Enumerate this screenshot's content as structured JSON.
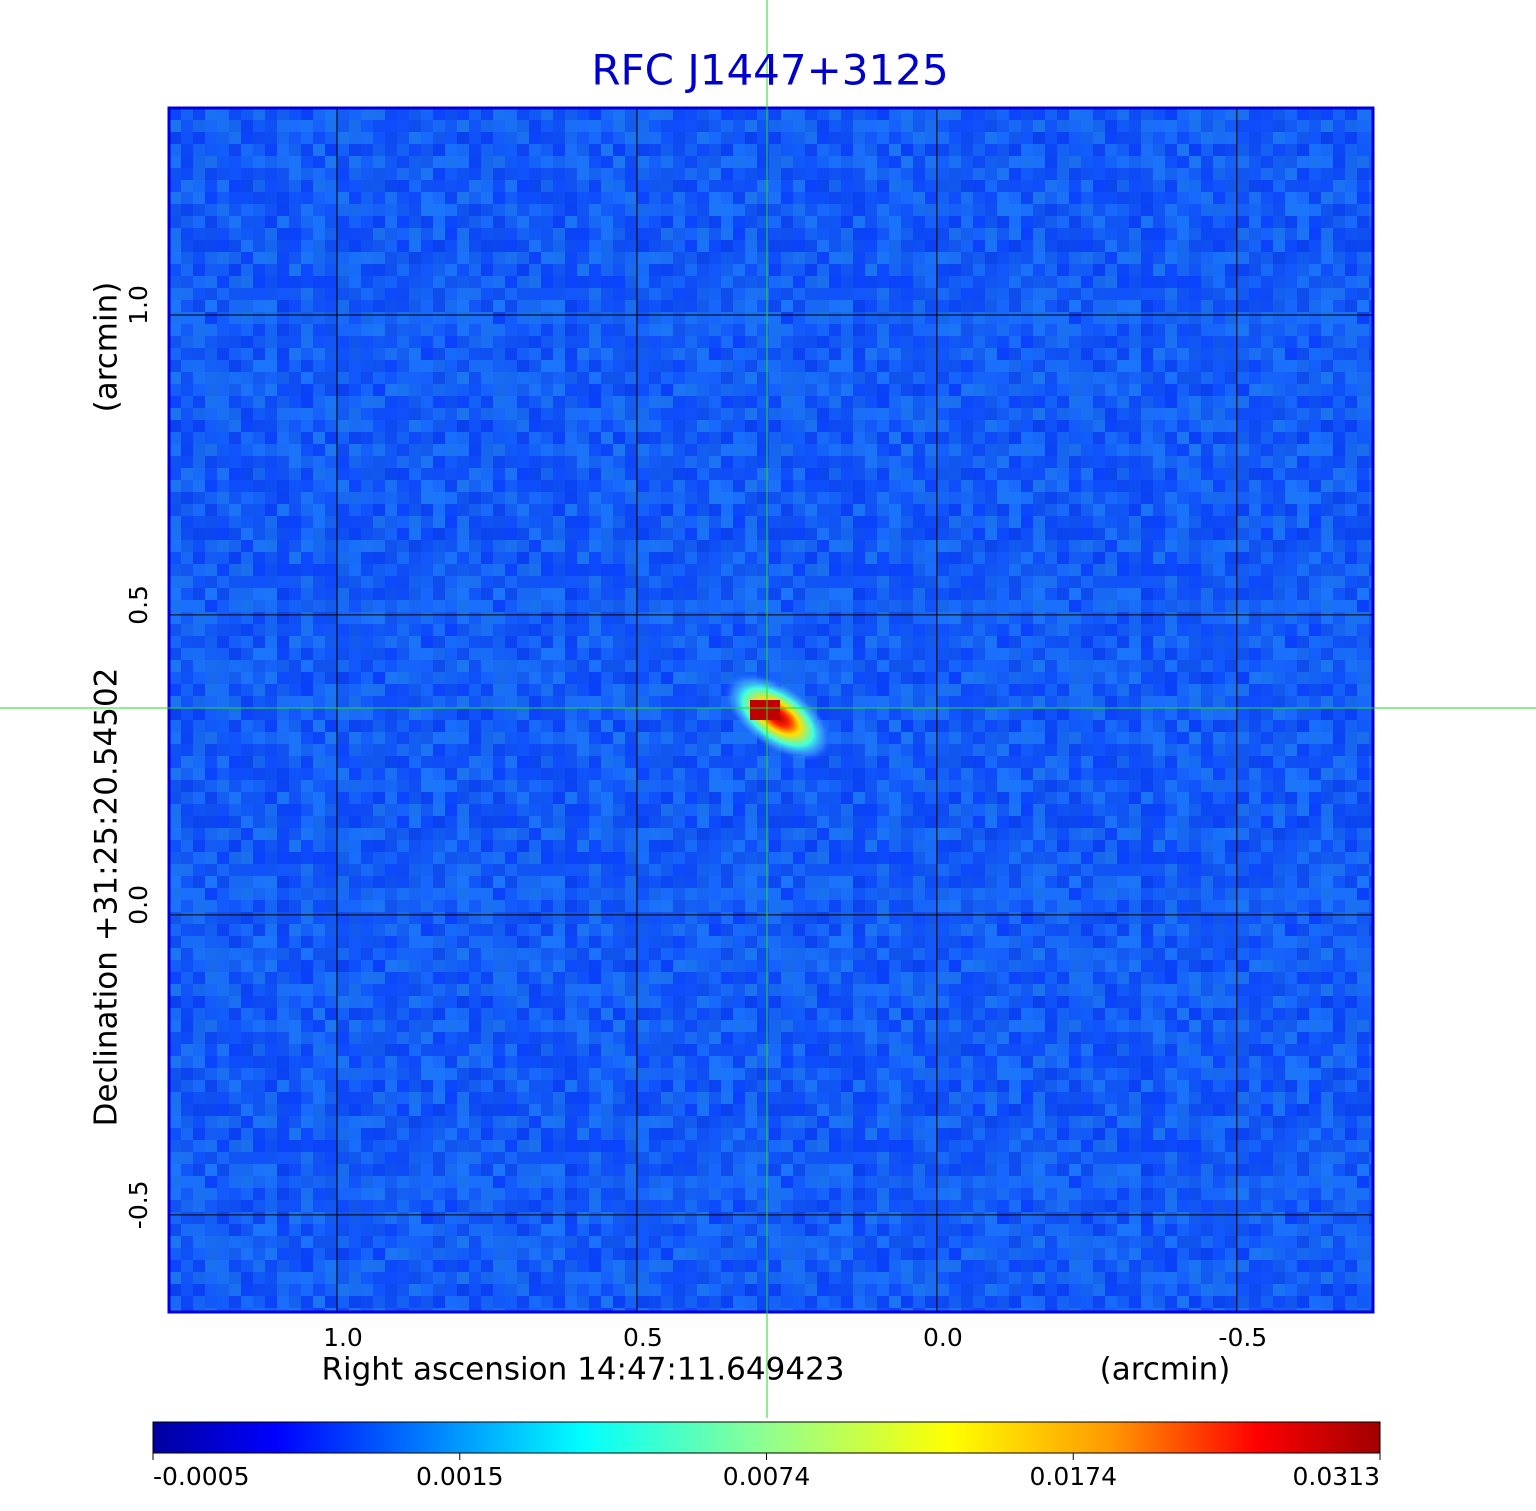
{
  "chart_data": {
    "type": "image",
    "title": "RFC J1447+3125",
    "xlabel": "Right ascension  14:47:11.649423",
    "xunit": "(arcmin)",
    "ylabel": "Declination  +31:25:20.54502",
    "yunit": "(arcmin)",
    "xlim": [
      1.28,
      -0.727
    ],
    "ylim": [
      -0.662,
      1.345
    ],
    "xticks": [
      {
        "value": 1,
        "label": "1.0"
      },
      0.5,
      {
        "value": 0,
        "label": "0.0"
      },
      -0.5
    ],
    "yticks": [
      {
        "value": 1,
        "label": "1.0"
      },
      0.5,
      {
        "value": 0,
        "label": "0.0"
      },
      -0.5
    ],
    "grid": true,
    "colorbar_ticks": [
      -0.0005,
      0.0015,
      0.0074,
      0.0174,
      0.0313
    ]
  }
}
